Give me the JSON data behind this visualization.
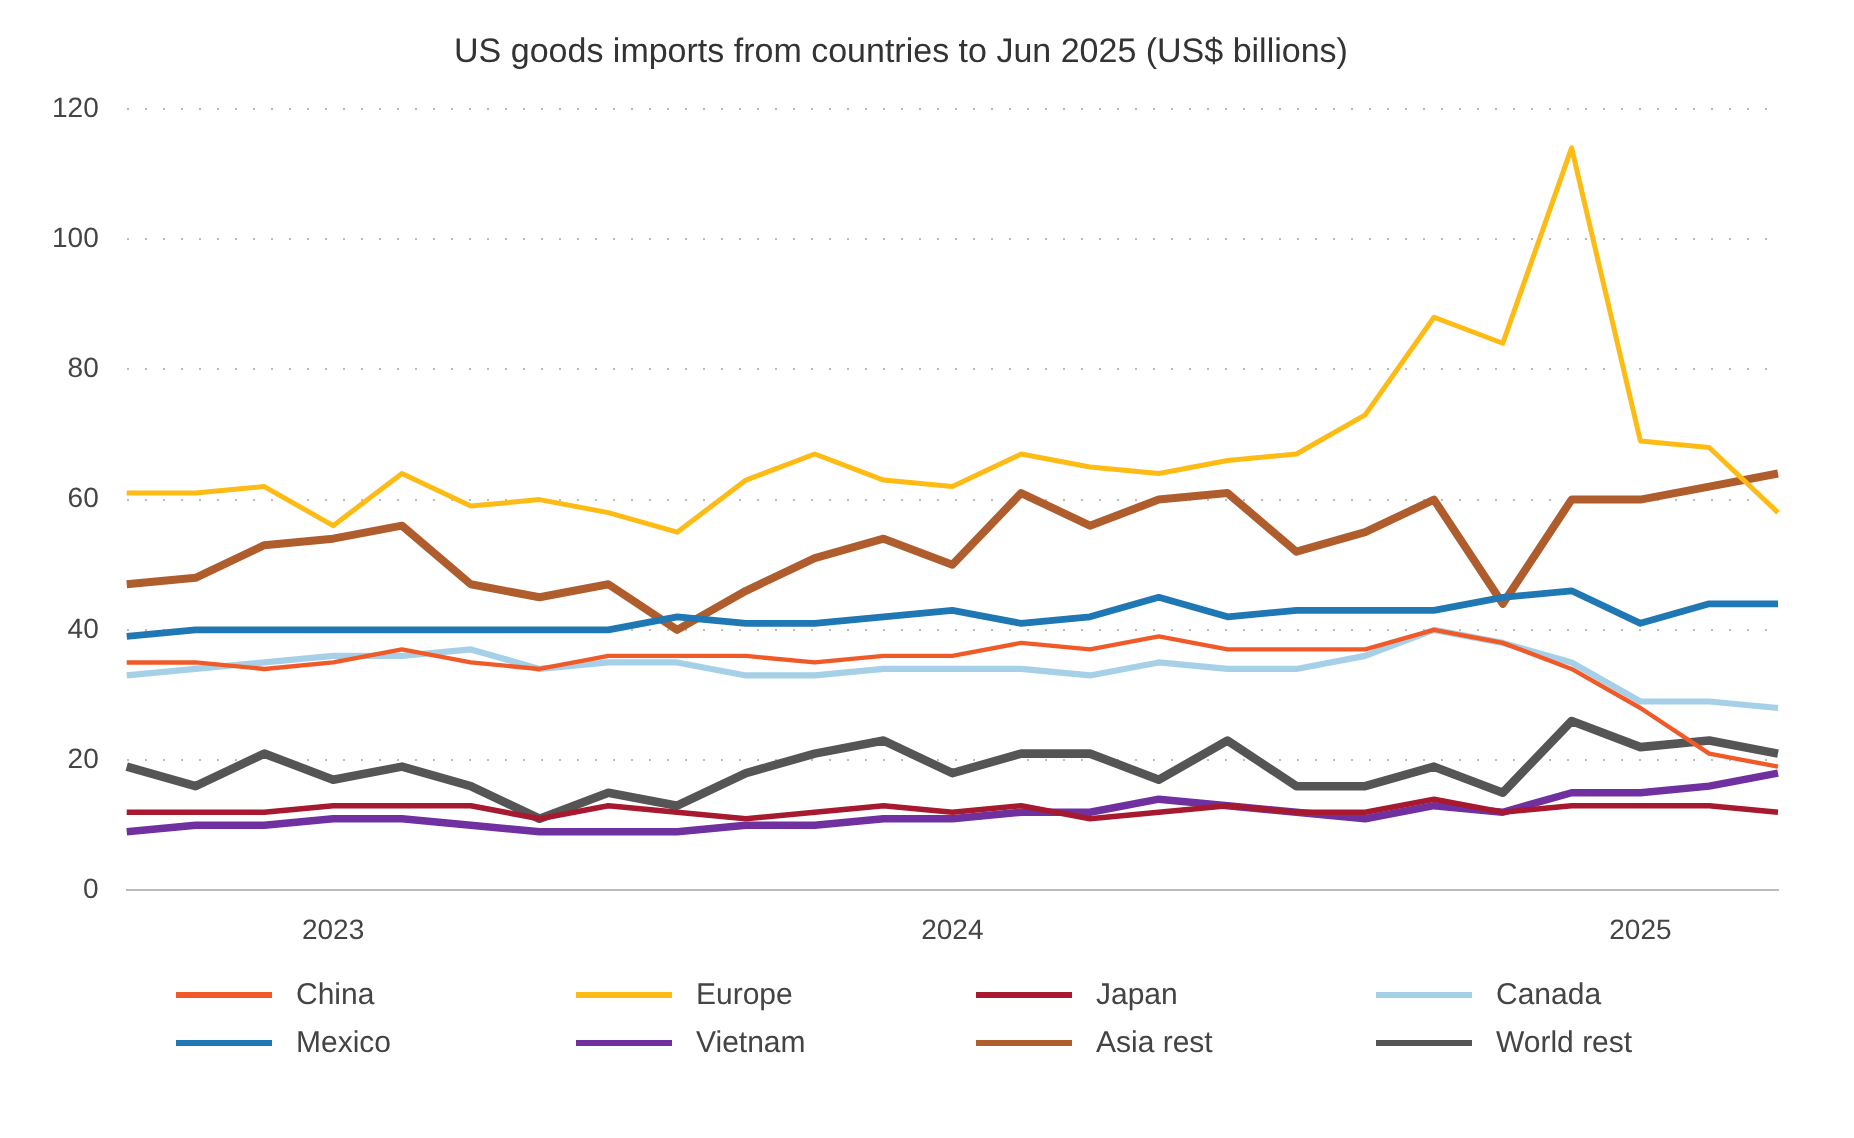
{
  "chart_data": {
    "type": "line",
    "title": "US goods imports from countries to Jun 2025 (US$ billions)",
    "categories": [
      null,
      null,
      null,
      "2023",
      null,
      null,
      null,
      null,
      null,
      null,
      null,
      null,
      "2024",
      null,
      null,
      null,
      null,
      null,
      null,
      null,
      null,
      null,
      "2025",
      null,
      null
    ],
    "series": [
      {
        "name": "China",
        "color": "#f05a28",
        "values": [
          35,
          35,
          34,
          35,
          37,
          35,
          34,
          36,
          36,
          36,
          35,
          36,
          36,
          38,
          37,
          39,
          37,
          37,
          37,
          40,
          38,
          34,
          28,
          21,
          19
        ]
      },
      {
        "name": "Europe",
        "color": "#fdbb13",
        "values": [
          61,
          61,
          62,
          56,
          64,
          59,
          60,
          58,
          55,
          63,
          67,
          63,
          62,
          67,
          65,
          64,
          66,
          67,
          73,
          88,
          84,
          114,
          69,
          68,
          58
        ]
      },
      {
        "name": "Japan",
        "color": "#a6192e",
        "values": [
          12,
          12,
          12,
          13,
          13,
          13,
          11,
          13,
          12,
          11,
          12,
          13,
          12,
          13,
          11,
          12,
          13,
          12,
          12,
          14,
          12,
          13,
          13,
          13,
          12
        ]
      },
      {
        "name": "Canada",
        "color": "#a6d0e8",
        "values": [
          33,
          34,
          35,
          36,
          36,
          37,
          34,
          35,
          35,
          33,
          33,
          34,
          34,
          34,
          33,
          35,
          34,
          34,
          36,
          40,
          38,
          35,
          29,
          29,
          28
        ]
      },
      {
        "name": "Mexico",
        "color": "#1f78b4",
        "values": [
          39,
          40,
          40,
          40,
          40,
          40,
          40,
          40,
          42,
          41,
          41,
          42,
          43,
          41,
          42,
          45,
          42,
          43,
          43,
          43,
          45,
          46,
          41,
          44,
          44
        ]
      },
      {
        "name": "Vietnam",
        "color": "#7030a0",
        "values": [
          9,
          10,
          10,
          11,
          11,
          10,
          9,
          9,
          9,
          10,
          10,
          11,
          11,
          12,
          12,
          14,
          13,
          12,
          11,
          13,
          12,
          15,
          15,
          16,
          18
        ]
      },
      {
        "name": "Asia rest",
        "color": "#b05d2e",
        "values": [
          47,
          48,
          53,
          54,
          56,
          47,
          45,
          47,
          40,
          46,
          51,
          54,
          50,
          61,
          56,
          60,
          61,
          52,
          55,
          60,
          44,
          60,
          60,
          62,
          64
        ]
      },
      {
        "name": "World rest",
        "color": "#555555",
        "values": [
          19,
          16,
          21,
          17,
          19,
          16,
          11,
          15,
          13,
          18,
          21,
          23,
          18,
          21,
          21,
          17,
          23,
          16,
          16,
          19,
          15,
          26,
          22,
          23,
          21
        ]
      }
    ],
    "ylim": [
      0,
      120
    ],
    "yticks": [
      0,
      20,
      40,
      60,
      80,
      100,
      120
    ],
    "grid": "y",
    "legend": "bottom",
    "marker": "none",
    "line_style": "solid"
  }
}
